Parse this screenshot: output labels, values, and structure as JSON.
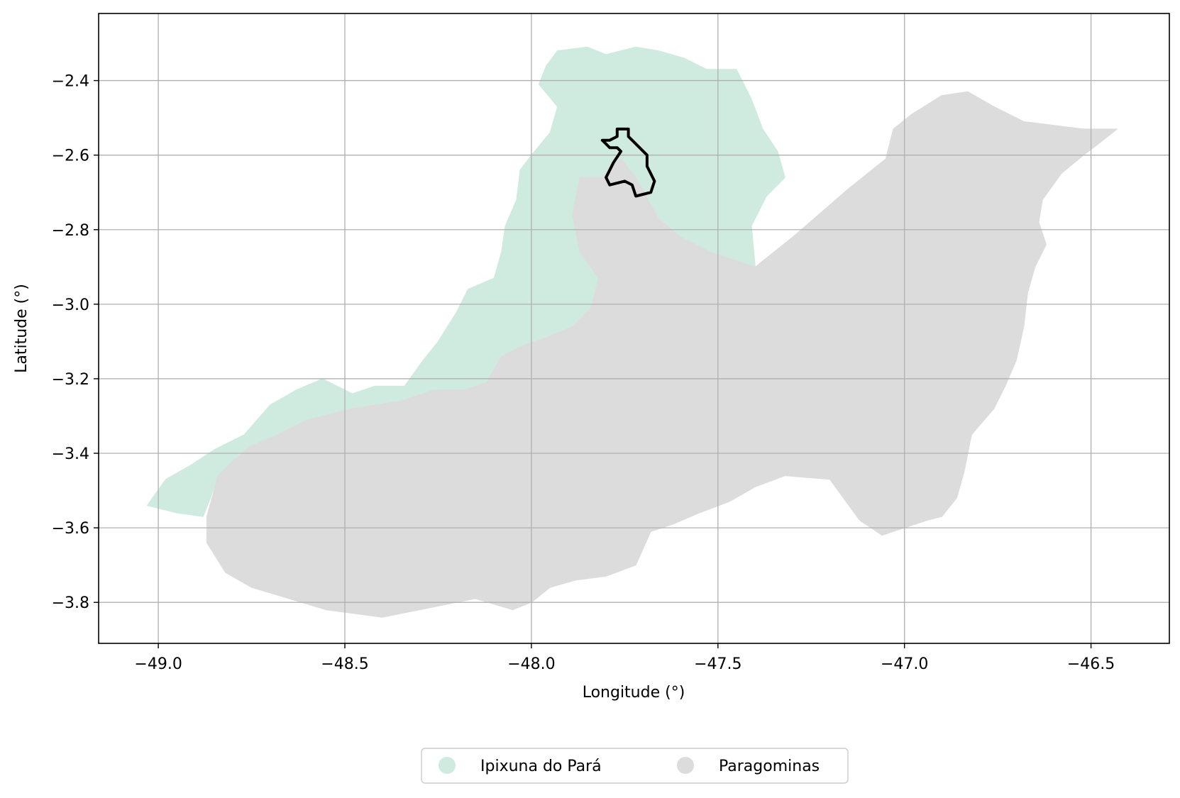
{
  "axes": {
    "xlabel": "Longitude (°)",
    "ylabel": "Latitude (°)",
    "xlim": [
      -49.16,
      -46.29
    ],
    "ylim": [
      -3.91,
      -2.22
    ],
    "grid": true,
    "xticks": [
      {
        "value": -49.0,
        "label": "−49.0"
      },
      {
        "value": -48.5,
        "label": "−48.5"
      },
      {
        "value": -48.0,
        "label": "−48.0"
      },
      {
        "value": -47.5,
        "label": "−47.5"
      },
      {
        "value": -47.0,
        "label": "−47.0"
      },
      {
        "value": -46.5,
        "label": "−46.5"
      }
    ],
    "yticks": [
      {
        "value": -2.4,
        "label": "−2.4"
      },
      {
        "value": -2.6,
        "label": "−2.6"
      },
      {
        "value": -2.8,
        "label": "−2.8"
      },
      {
        "value": -3.0,
        "label": "−3.0"
      },
      {
        "value": -3.2,
        "label": "−3.2"
      },
      {
        "value": -3.4,
        "label": "−3.4"
      },
      {
        "value": -3.6,
        "label": "−3.6"
      },
      {
        "value": -3.8,
        "label": "−3.8"
      }
    ]
  },
  "colors": {
    "ipixuna": "#cfeadf",
    "paragominas": "#dcdcdc",
    "grid": "#b0b0b0",
    "outline": "#000000"
  },
  "legend": {
    "placement": "bottom-center",
    "items": [
      {
        "label": "Ipixuna do Pará",
        "color": "#cfeadf"
      },
      {
        "label": "Paragominas",
        "color": "#dcdcdc"
      }
    ]
  },
  "chart_data": {
    "type": "map",
    "xlabel": "Longitude (°)",
    "ylabel": "Latitude (°)",
    "xlim": [
      -49.16,
      -46.29
    ],
    "ylim": [
      -3.91,
      -2.22
    ],
    "regions": [
      {
        "name": "Ipixuna do Pará",
        "color": "#cfeadf",
        "polygon": [
          [
            -49.03,
            -3.54
          ],
          [
            -48.98,
            -3.47
          ],
          [
            -48.91,
            -3.43
          ],
          [
            -48.85,
            -3.39
          ],
          [
            -48.77,
            -3.35
          ],
          [
            -48.7,
            -3.27
          ],
          [
            -48.63,
            -3.23
          ],
          [
            -48.56,
            -3.2
          ],
          [
            -48.48,
            -3.24
          ],
          [
            -48.42,
            -3.22
          ],
          [
            -48.34,
            -3.22
          ],
          [
            -48.29,
            -3.15
          ],
          [
            -48.25,
            -3.1
          ],
          [
            -48.2,
            -3.02
          ],
          [
            -48.17,
            -2.96
          ],
          [
            -48.1,
            -2.93
          ],
          [
            -48.08,
            -2.86
          ],
          [
            -48.07,
            -2.79
          ],
          [
            -48.04,
            -2.72
          ],
          [
            -48.03,
            -2.64
          ],
          [
            -48.0,
            -2.6
          ],
          [
            -47.95,
            -2.54
          ],
          [
            -47.93,
            -2.47
          ],
          [
            -47.98,
            -2.41
          ],
          [
            -47.96,
            -2.36
          ],
          [
            -47.93,
            -2.32
          ],
          [
            -47.85,
            -2.31
          ],
          [
            -47.8,
            -2.33
          ],
          [
            -47.72,
            -2.31
          ],
          [
            -47.66,
            -2.32
          ],
          [
            -47.59,
            -2.34
          ],
          [
            -47.53,
            -2.37
          ],
          [
            -47.45,
            -2.37
          ],
          [
            -47.41,
            -2.45
          ],
          [
            -47.38,
            -2.53
          ],
          [
            -47.34,
            -2.59
          ],
          [
            -47.32,
            -2.66
          ],
          [
            -47.37,
            -2.71
          ],
          [
            -47.41,
            -2.79
          ],
          [
            -47.4,
            -2.9
          ],
          [
            -47.46,
            -2.88
          ],
          [
            -47.52,
            -2.86
          ],
          [
            -47.6,
            -2.82
          ],
          [
            -47.66,
            -2.77
          ],
          [
            -47.72,
            -2.72
          ],
          [
            -47.81,
            -2.66
          ],
          [
            -47.87,
            -2.66
          ],
          [
            -47.89,
            -2.76
          ],
          [
            -47.87,
            -2.86
          ],
          [
            -47.82,
            -2.93
          ],
          [
            -47.84,
            -3.01
          ],
          [
            -47.89,
            -3.06
          ],
          [
            -47.96,
            -3.09
          ],
          [
            -48.02,
            -3.11
          ],
          [
            -48.08,
            -3.14
          ],
          [
            -48.12,
            -3.21
          ],
          [
            -48.18,
            -3.23
          ],
          [
            -48.26,
            -3.23
          ],
          [
            -48.35,
            -3.26
          ],
          [
            -48.48,
            -3.28
          ],
          [
            -48.6,
            -3.31
          ],
          [
            -48.68,
            -3.35
          ],
          [
            -48.75,
            -3.38
          ],
          [
            -48.8,
            -3.42
          ],
          [
            -48.84,
            -3.46
          ],
          [
            -48.86,
            -3.52
          ],
          [
            -48.88,
            -3.57
          ],
          [
            -48.95,
            -3.56
          ],
          [
            -49.03,
            -3.54
          ]
        ]
      },
      {
        "name": "Paragominas",
        "color": "#dcdcdc",
        "polygon": [
          [
            -48.75,
            -3.38
          ],
          [
            -48.68,
            -3.35
          ],
          [
            -48.6,
            -3.31
          ],
          [
            -48.48,
            -3.28
          ],
          [
            -48.35,
            -3.26
          ],
          [
            -48.26,
            -3.23
          ],
          [
            -48.18,
            -3.23
          ],
          [
            -48.12,
            -3.21
          ],
          [
            -48.08,
            -3.14
          ],
          [
            -48.02,
            -3.11
          ],
          [
            -47.96,
            -3.09
          ],
          [
            -47.89,
            -3.06
          ],
          [
            -47.84,
            -3.01
          ],
          [
            -47.82,
            -2.93
          ],
          [
            -47.87,
            -2.86
          ],
          [
            -47.89,
            -2.76
          ],
          [
            -47.87,
            -2.66
          ],
          [
            -47.81,
            -2.66
          ],
          [
            -47.76,
            -2.61
          ],
          [
            -47.72,
            -2.66
          ],
          [
            -47.66,
            -2.77
          ],
          [
            -47.6,
            -2.82
          ],
          [
            -47.52,
            -2.86
          ],
          [
            -47.46,
            -2.88
          ],
          [
            -47.4,
            -2.9
          ],
          [
            -47.3,
            -2.82
          ],
          [
            -47.15,
            -2.69
          ],
          [
            -47.05,
            -2.61
          ],
          [
            -47.03,
            -2.53
          ],
          [
            -46.98,
            -2.49
          ],
          [
            -46.9,
            -2.44
          ],
          [
            -46.83,
            -2.43
          ],
          [
            -46.76,
            -2.47
          ],
          [
            -46.68,
            -2.51
          ],
          [
            -46.6,
            -2.52
          ],
          [
            -46.52,
            -2.53
          ],
          [
            -46.47,
            -2.53
          ],
          [
            -46.43,
            -2.53
          ],
          [
            -46.48,
            -2.57
          ],
          [
            -46.52,
            -2.6
          ],
          [
            -46.58,
            -2.65
          ],
          [
            -46.63,
            -2.72
          ],
          [
            -46.64,
            -2.78
          ],
          [
            -46.62,
            -2.84
          ],
          [
            -46.65,
            -2.9
          ],
          [
            -46.67,
            -2.97
          ],
          [
            -46.68,
            -3.06
          ],
          [
            -46.7,
            -3.15
          ],
          [
            -46.73,
            -3.22
          ],
          [
            -46.76,
            -3.28
          ],
          [
            -46.82,
            -3.35
          ],
          [
            -46.84,
            -3.45
          ],
          [
            -46.86,
            -3.52
          ],
          [
            -46.9,
            -3.57
          ],
          [
            -46.94,
            -3.58
          ],
          [
            -47.0,
            -3.6
          ],
          [
            -47.06,
            -3.62
          ],
          [
            -47.12,
            -3.58
          ],
          [
            -47.2,
            -3.47
          ],
          [
            -47.32,
            -3.46
          ],
          [
            -47.4,
            -3.49
          ],
          [
            -47.47,
            -3.53
          ],
          [
            -47.55,
            -3.56
          ],
          [
            -47.62,
            -3.59
          ],
          [
            -47.68,
            -3.61
          ],
          [
            -47.72,
            -3.7
          ],
          [
            -47.8,
            -3.73
          ],
          [
            -47.88,
            -3.74
          ],
          [
            -47.95,
            -3.76
          ],
          [
            -48.0,
            -3.8
          ],
          [
            -48.05,
            -3.82
          ],
          [
            -48.15,
            -3.79
          ],
          [
            -48.3,
            -3.82
          ],
          [
            -48.4,
            -3.84
          ],
          [
            -48.55,
            -3.82
          ],
          [
            -48.65,
            -3.79
          ],
          [
            -48.75,
            -3.76
          ],
          [
            -48.82,
            -3.72
          ],
          [
            -48.87,
            -3.64
          ],
          [
            -48.87,
            -3.57
          ],
          [
            -48.84,
            -3.46
          ],
          [
            -48.8,
            -3.42
          ],
          [
            -48.75,
            -3.38
          ]
        ]
      }
    ],
    "outline": {
      "color": "#000000",
      "polygon": [
        [
          -47.81,
          -2.56
        ],
        [
          -47.79,
          -2.56
        ],
        [
          -47.77,
          -2.55
        ],
        [
          -47.77,
          -2.53
        ],
        [
          -47.75,
          -2.53
        ],
        [
          -47.74,
          -2.53
        ],
        [
          -47.74,
          -2.55
        ],
        [
          -47.73,
          -2.56
        ],
        [
          -47.71,
          -2.58
        ],
        [
          -47.69,
          -2.6
        ],
        [
          -47.69,
          -2.63
        ],
        [
          -47.68,
          -2.65
        ],
        [
          -47.67,
          -2.67
        ],
        [
          -47.68,
          -2.7
        ],
        [
          -47.72,
          -2.71
        ],
        [
          -47.73,
          -2.68
        ],
        [
          -47.75,
          -2.67
        ],
        [
          -47.79,
          -2.68
        ],
        [
          -47.8,
          -2.66
        ],
        [
          -47.78,
          -2.62
        ],
        [
          -47.76,
          -2.59
        ],
        [
          -47.77,
          -2.58
        ],
        [
          -47.79,
          -2.58
        ],
        [
          -47.8,
          -2.57
        ],
        [
          -47.81,
          -2.56
        ]
      ]
    }
  }
}
